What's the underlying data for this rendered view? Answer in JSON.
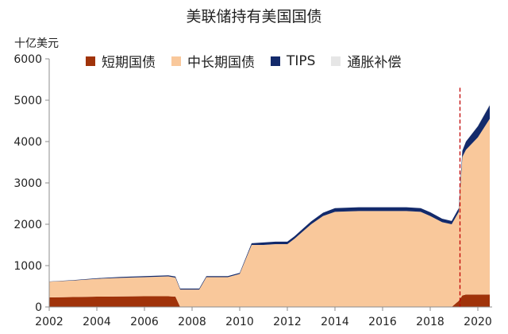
{
  "chart_data": {
    "type": "area",
    "title": "美联储持有美国国债",
    "unit_label": "十亿美元",
    "xlabel": "",
    "ylabel": "",
    "xlim": [
      2002,
      2020.6
    ],
    "ylim": [
      0,
      6000
    ],
    "x_ticks": [
      "2002",
      "2004",
      "2006",
      "2008",
      "2010",
      "2012",
      "2014",
      "2016",
      "2018",
      "2020"
    ],
    "y_ticks": [
      "0",
      "1000",
      "2000",
      "3000",
      "4000",
      "5000",
      "6000"
    ],
    "grid": false,
    "legend_position": "top",
    "vline": {
      "x": 2019.25,
      "style": "dashed",
      "color": "#c00000"
    },
    "colors": {
      "short": "#a0330a",
      "long": "#f9c89b",
      "tips": "#132a6b",
      "inflation": "#e6e6e6"
    },
    "x": [
      2002.0,
      2003.0,
      2004.0,
      2005.0,
      2006.0,
      2007.0,
      2007.3,
      2007.5,
      2008.0,
      2008.3,
      2008.6,
      2009.0,
      2009.5,
      2010.0,
      2010.5,
      2011.0,
      2011.5,
      2012.0,
      2012.3,
      2013.0,
      2013.5,
      2014.0,
      2015.0,
      2016.0,
      2017.0,
      2017.6,
      2018.0,
      2018.5,
      2018.9,
      2019.2,
      2019.35,
      2019.5,
      2020.0,
      2020.5
    ],
    "series": [
      {
        "name": "短期国债",
        "values": [
          230,
          240,
          250,
          255,
          260,
          260,
          250,
          0,
          0,
          0,
          0,
          0,
          0,
          0,
          0,
          0,
          0,
          0,
          0,
          0,
          0,
          0,
          0,
          0,
          0,
          0,
          0,
          0,
          0,
          150,
          280,
          300,
          300,
          300
        ]
      },
      {
        "name": "中长期国债",
        "values": [
          380,
          400,
          430,
          450,
          460,
          480,
          460,
          420,
          420,
          420,
          720,
          720,
          720,
          800,
          1500,
          1500,
          1520,
          1520,
          1650,
          2000,
          2200,
          2300,
          2320,
          2320,
          2320,
          2300,
          2200,
          2050,
          2000,
          2150,
          3350,
          3500,
          3800,
          4250
        ]
      },
      {
        "name": "TIPS",
        "values": [
          5,
          10,
          15,
          20,
          25,
          25,
          25,
          25,
          25,
          25,
          25,
          25,
          25,
          25,
          40,
          60,
          60,
          60,
          60,
          70,
          80,
          90,
          90,
          90,
          90,
          90,
          90,
          85,
          80,
          90,
          150,
          200,
          270,
          330
        ]
      },
      {
        "name": "通胀补偿",
        "values": [
          0,
          0,
          0,
          0,
          0,
          0,
          0,
          0,
          0,
          0,
          0,
          0,
          0,
          0,
          0,
          0,
          0,
          0,
          0,
          0,
          0,
          0,
          0,
          0,
          0,
          0,
          0,
          0,
          0,
          0,
          0,
          10,
          20,
          30
        ]
      }
    ]
  }
}
